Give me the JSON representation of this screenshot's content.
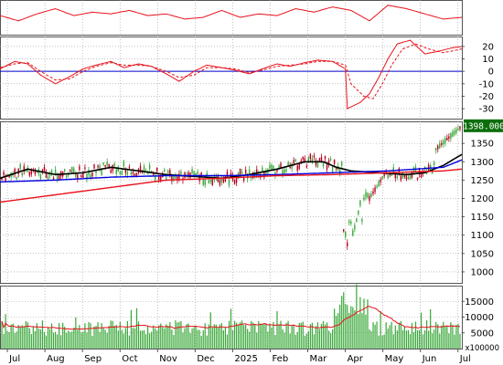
{
  "chart_data": [
    {
      "type": "line",
      "panel": "oscillator-top",
      "series": [
        {
          "color": "#e8101a",
          "x": [
            0,
            10,
            20,
            30,
            40,
            50,
            60,
            70,
            80,
            90,
            100,
            110,
            120,
            130,
            140,
            150,
            160,
            170,
            180,
            190,
            200,
            210,
            220,
            230,
            240,
            250
          ],
          "y": [
            55,
            40,
            60,
            75,
            55,
            65,
            60,
            70,
            55,
            60,
            45,
            50,
            70,
            50,
            60,
            55,
            75,
            65,
            80,
            70,
            40,
            85,
            75,
            60,
            45,
            50
          ]
        }
      ],
      "grid": true
    },
    {
      "type": "line",
      "panel": "macd",
      "yticks": [
        20,
        10,
        0,
        -10,
        -20,
        -30
      ],
      "ylim": [
        -38,
        28
      ],
      "zero_line": true,
      "series": [
        {
          "color": "#e8101a",
          "style": "solid",
          "x": [
            0,
            8,
            15,
            22,
            30,
            38,
            45,
            52,
            60,
            67,
            75,
            82,
            90,
            97,
            105,
            112,
            120,
            127,
            135,
            142,
            150,
            157,
            165,
            172,
            180,
            187,
            188,
            195,
            200,
            205,
            210,
            215,
            222,
            230,
            237,
            245,
            250
          ],
          "y": [
            2,
            8,
            6,
            -3,
            -10,
            -4,
            2,
            5,
            8,
            3,
            6,
            4,
            -2,
            -8,
            0,
            5,
            3,
            1,
            -2,
            2,
            6,
            4,
            7,
            9,
            8,
            2,
            -30,
            -25,
            -18,
            -5,
            10,
            22,
            25,
            14,
            16,
            19,
            20
          ]
        },
        {
          "color": "#e8101a",
          "style": "dashed",
          "x": [
            0,
            8,
            15,
            22,
            30,
            38,
            45,
            52,
            60,
            67,
            75,
            82,
            90,
            97,
            105,
            112,
            120,
            127,
            135,
            142,
            150,
            157,
            165,
            172,
            180,
            187,
            190,
            197,
            202,
            207,
            212,
            218,
            225,
            232,
            240,
            250
          ],
          "y": [
            3,
            6,
            7,
            0,
            -7,
            -6,
            0,
            4,
            7,
            5,
            5,
            4,
            0,
            -5,
            -3,
            3,
            3,
            2,
            -1,
            1,
            4,
            5,
            6,
            8,
            8,
            5,
            -10,
            -20,
            -22,
            -10,
            5,
            18,
            22,
            18,
            15,
            18
          ]
        }
      ],
      "grid": true
    },
    {
      "type": "candlestick",
      "panel": "price",
      "yticks": [
        1398.0,
        1350,
        1300,
        1250,
        1200,
        1150,
        1100,
        1050,
        1000
      ],
      "ylim": [
        970,
        1410
      ],
      "last_price": "1398.000",
      "series": [
        {
          "color": "#000000",
          "style": "line",
          "x": [
            0,
            15,
            30,
            45,
            60,
            75,
            90,
            105,
            120,
            135,
            150,
            165,
            175,
            182,
            190,
            205,
            220,
            230,
            240,
            250
          ],
          "y": [
            1255,
            1280,
            1265,
            1270,
            1285,
            1275,
            1265,
            1260,
            1255,
            1265,
            1280,
            1300,
            1300,
            1285,
            1275,
            1270,
            1265,
            1270,
            1290,
            1320
          ]
        },
        {
          "color": "#0000e0",
          "style": "line",
          "x": [
            0,
            30,
            60,
            90,
            120,
            150,
            180,
            210,
            240,
            250
          ],
          "y": [
            1245,
            1250,
            1258,
            1262,
            1262,
            1265,
            1270,
            1275,
            1285,
            1305
          ]
        },
        {
          "color": "#e8101a",
          "style": "line",
          "x": [
            0,
            30,
            60,
            90,
            120,
            150,
            180,
            210,
            240,
            250
          ],
          "y": [
            1190,
            1210,
            1230,
            1250,
            1255,
            1262,
            1265,
            1270,
            1275,
            1280
          ]
        }
      ],
      "candles_per_day": 1,
      "candle_count": 250,
      "grid": true
    },
    {
      "type": "bar",
      "panel": "volume",
      "yticks": [
        15000,
        10000,
        5000
      ],
      "ylim": [
        0,
        20000
      ],
      "unit": "x100000",
      "ma_color": "#e8101a",
      "bar_color": "#3ba83b",
      "grid": true
    }
  ],
  "x_axis": {
    "labels": [
      "Jul",
      "Aug",
      "Sep",
      "Oct",
      "Nov",
      "Dec",
      "2025",
      "Feb",
      "Mar",
      "Apr",
      "May",
      "Jun",
      "Jul"
    ]
  },
  "colors": {
    "up_candle": "#3ba83b",
    "down_candle": "#b8001f",
    "last_price_box": "#0b6e0b",
    "zero_line": "#0000cc"
  }
}
